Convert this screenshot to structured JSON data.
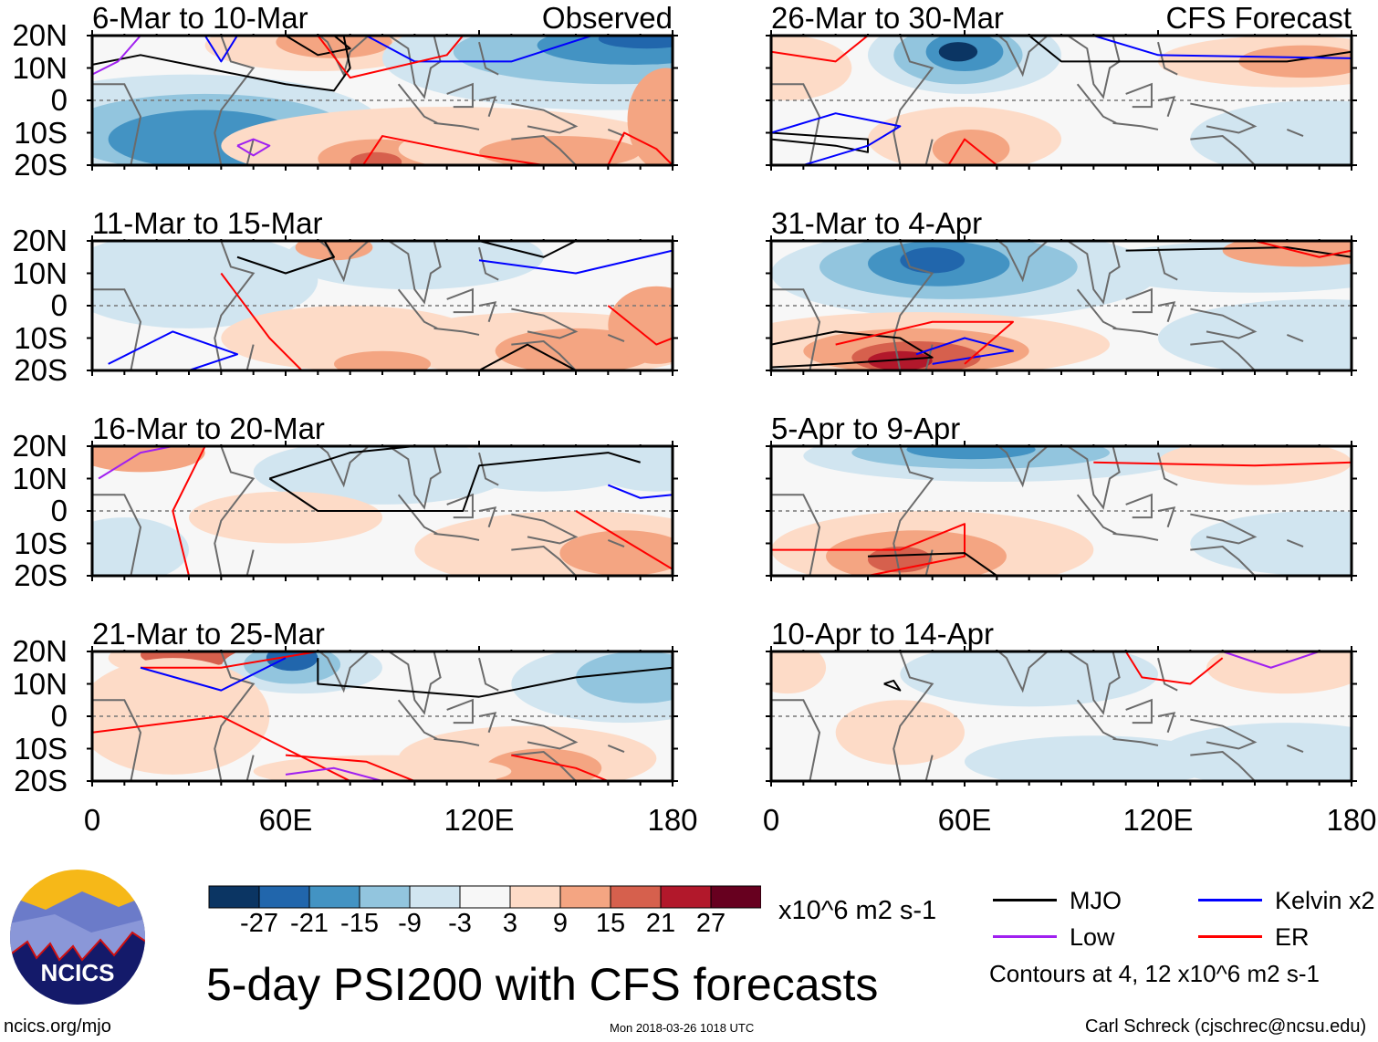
{
  "panels": [
    {
      "title": "6-Mar to 10-Mar",
      "tag": "Observed"
    },
    {
      "title": "26-Mar to 30-Mar",
      "tag": "CFS Forecast"
    },
    {
      "title": "11-Mar to 15-Mar",
      "tag": ""
    },
    {
      "title": "31-Mar to 4-Apr",
      "tag": ""
    },
    {
      "title": "16-Mar to 20-Mar",
      "tag": ""
    },
    {
      "title": "5-Apr to 9-Apr",
      "tag": ""
    },
    {
      "title": "21-Mar to 25-Mar",
      "tag": ""
    },
    {
      "title": "10-Apr to 14-Apr",
      "tag": ""
    }
  ],
  "lat_ticks": [
    "20N",
    "10N",
    "0",
    "10S",
    "20S"
  ],
  "lon_ticks": [
    "0",
    "60E",
    "120E",
    "180"
  ],
  "colorbar": {
    "labels": [
      "-27",
      "-21",
      "-15",
      "-9",
      "-3",
      "3",
      "9",
      "15",
      "21",
      "27"
    ],
    "colors": [
      "#0b3563",
      "#2166ac",
      "#4393c3",
      "#92c5de",
      "#d1e5f0",
      "#f7f7f7",
      "#fddbc7",
      "#f4a582",
      "#d6604d",
      "#b2182b",
      "#67001f"
    ],
    "units": "x10^6 m2 s-1"
  },
  "legend": {
    "items": [
      {
        "label": "MJO",
        "color": "#000000"
      },
      {
        "label": "Kelvin x2",
        "color": "#0000ff"
      },
      {
        "label": "Low",
        "color": "#a020f0"
      },
      {
        "label": "ER",
        "color": "#ff0000"
      }
    ],
    "note": "Contours at 4, 12 x10^6 m2 s-1"
  },
  "title": "5-day PSI200 with CFS forecasts",
  "logo_text": "NCICS",
  "footer": {
    "url": "ncics.org/mjo",
    "timestamp": "Mon 2018-03-26 1018 UTC",
    "author": "Carl Schreck (cjschrec@ncsu.edu)"
  }
}
